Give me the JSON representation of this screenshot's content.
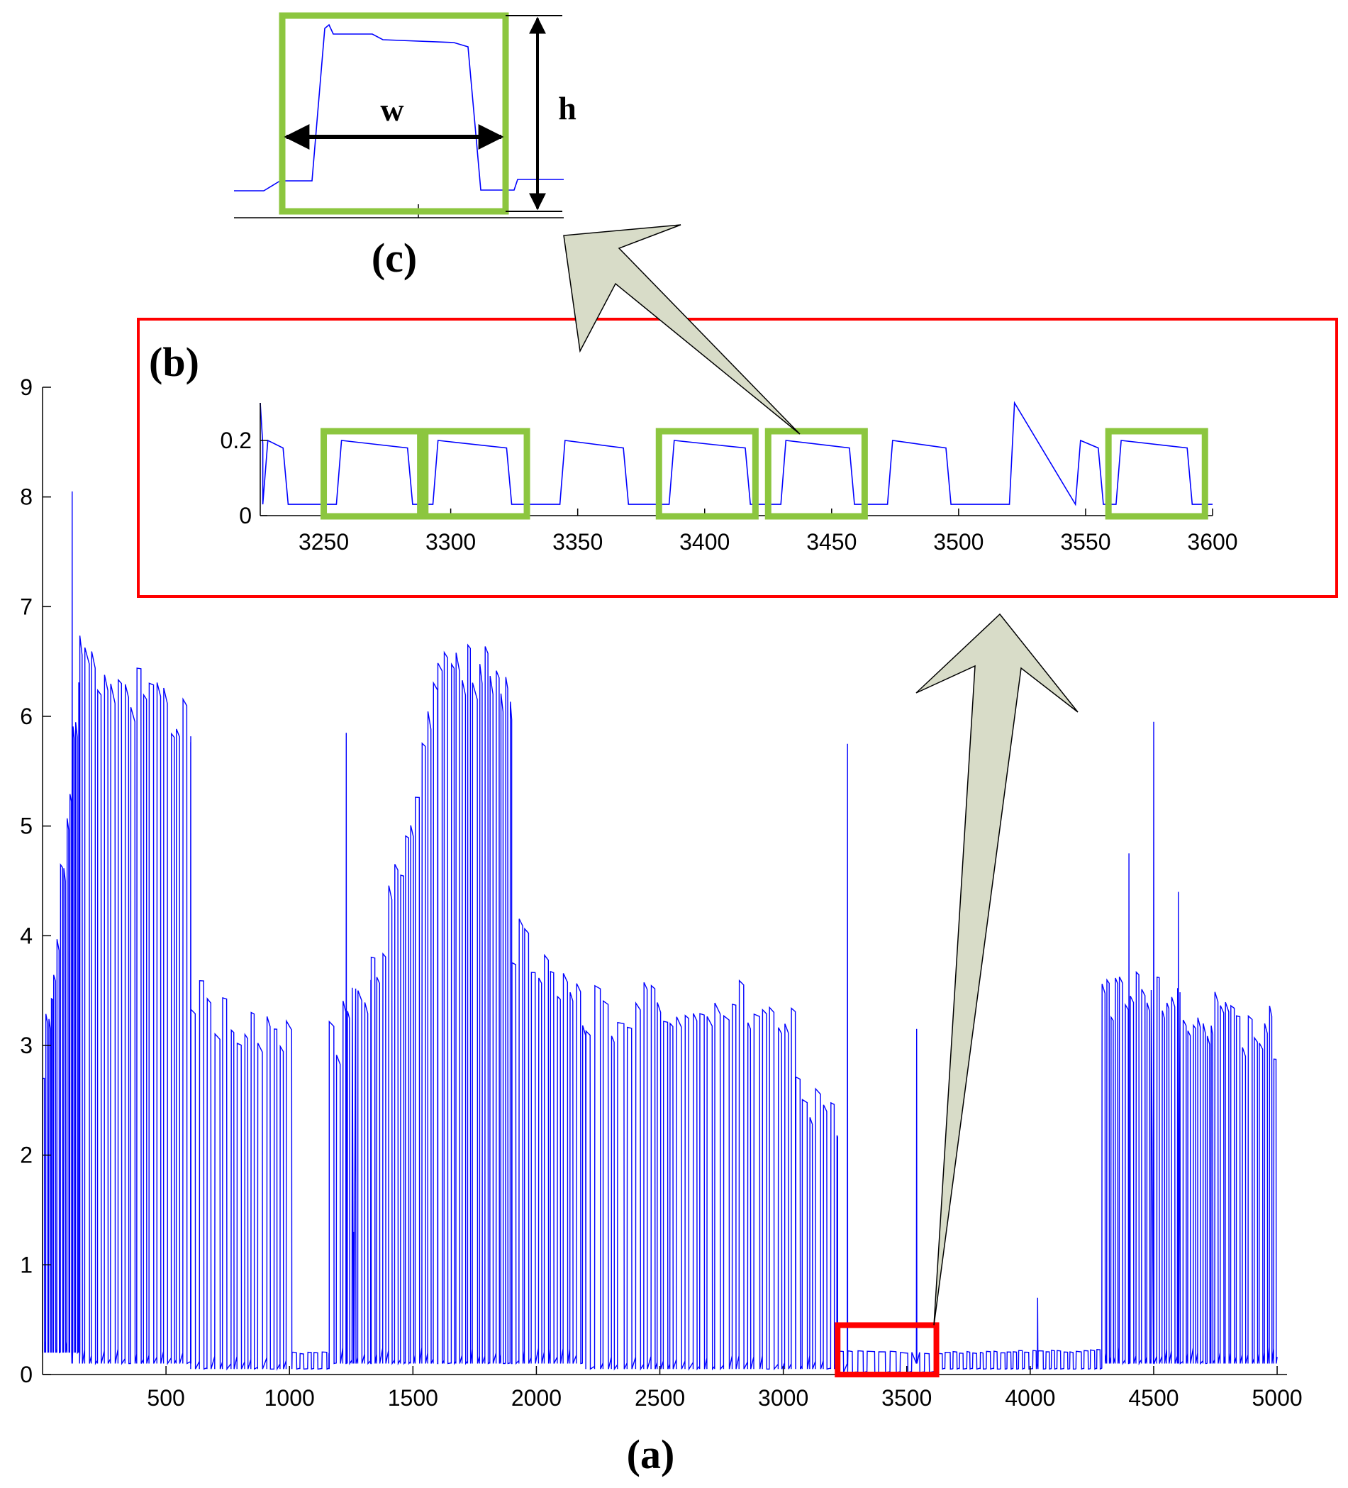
{
  "labels": {
    "panel_a": "(a)",
    "panel_b": "(b)",
    "panel_c": "(c)",
    "width": "w",
    "height": "h"
  },
  "colors": {
    "signal": "#0000ff",
    "highlight_red": "#ff0000",
    "window_green": "#8cc63f",
    "callout_arrow": "#d8dcc8",
    "axis": "#000000"
  },
  "chart_data": [
    {
      "id": "a",
      "type": "line",
      "xlim": [
        0,
        5040
      ],
      "ylim": [
        0,
        9
      ],
      "xticks": [
        500,
        1000,
        1500,
        2000,
        2500,
        3000,
        3500,
        4000,
        4500,
        5000
      ],
      "yticks": [
        0,
        1,
        2,
        3,
        4,
        5,
        6,
        7,
        8,
        9
      ],
      "highlight": {
        "x": [
          3220,
          3620
        ],
        "y": [
          0,
          0.45
        ],
        "color": "red"
      },
      "segments": [
        {
          "x": [
            0,
            150
          ],
          "hi": [
            2.8,
            6.4
          ],
          "lo": 0.2,
          "period": 12
        },
        {
          "x": [
            150,
            600
          ],
          "hi": [
            6.6,
            5.9
          ],
          "lo": 0.1,
          "period": 26
        },
        {
          "x": [
            600,
            1010
          ],
          "hi": [
            3.4,
            3.1
          ],
          "lo": 0.05,
          "period": 30
        },
        {
          "x": [
            1010,
            1160
          ],
          "hi": [
            0.2,
            0.2
          ],
          "lo": 0.05,
          "period": 28
        },
        {
          "x": [
            1160,
            1330
          ],
          "hi": [
            3.0,
            3.7
          ],
          "lo": 0.1,
          "period": 24
        },
        {
          "x": [
            1330,
            1600
          ],
          "hi": [
            3.6,
            6.3
          ],
          "lo": 0.1,
          "period": 22
        },
        {
          "x": [
            1600,
            1900
          ],
          "hi": [
            6.6,
            6.3
          ],
          "lo": 0.1,
          "period": 24
        },
        {
          "x": [
            1900,
            2200
          ],
          "hi": [
            4.0,
            3.4
          ],
          "lo": 0.1,
          "period": 26
        },
        {
          "x": [
            2200,
            3050
          ],
          "hi": [
            3.3,
            3.4
          ],
          "lo": 0.05,
          "period": 32
        },
        {
          "x": [
            3050,
            3220
          ],
          "hi": [
            2.6,
            2.3
          ],
          "lo": 0.05,
          "period": 30
        },
        {
          "x": [
            3220,
            3620
          ],
          "hi": [
            0.22,
            0.2
          ],
          "lo": 0.02,
          "period": 44
        },
        {
          "x": [
            3620,
            4290
          ],
          "hi": [
            0.2,
            0.22
          ],
          "lo": 0.05,
          "period": 28
        },
        {
          "x": [
            4290,
            5000
          ],
          "hi": [
            3.5,
            3.1
          ],
          "lo": 0.1,
          "period": 20
        }
      ],
      "spikes": [
        {
          "x": 120,
          "y": 8.05
        },
        {
          "x": 1230,
          "y": 5.85
        },
        {
          "x": 1260,
          "y": 1.3
        },
        {
          "x": 3260,
          "y": 5.75
        },
        {
          "x": 3540,
          "y": 3.15
        },
        {
          "x": 4030,
          "y": 0.7
        },
        {
          "x": 4400,
          "y": 4.75
        },
        {
          "x": 4500,
          "y": 5.95
        },
        {
          "x": 4600,
          "y": 4.4
        }
      ]
    },
    {
      "id": "b",
      "type": "line",
      "xlim": [
        3225,
        3600
      ],
      "ylim": [
        0,
        0.3
      ],
      "xticks": [
        3250,
        3300,
        3350,
        3400,
        3450,
        3500,
        3550,
        3600
      ],
      "yticks": [
        0,
        0.2
      ],
      "pulses": [
        {
          "x": [
            3228,
            3234
          ],
          "y": 0.19
        },
        {
          "x": [
            3257,
            3283
          ],
          "y": 0.19
        },
        {
          "x": [
            3295,
            3322
          ],
          "y": 0.19
        },
        {
          "x": [
            3345,
            3368
          ],
          "y": 0.19
        },
        {
          "x": [
            3388,
            3416
          ],
          "y": 0.19
        },
        {
          "x": [
            3432,
            3457
          ],
          "y": 0.19
        },
        {
          "x": [
            3474,
            3495
          ],
          "y": 0.19
        },
        {
          "x": [
            3548,
            3555
          ],
          "y": 0.19
        },
        {
          "x": [
            3564,
            3590
          ],
          "y": 0.19
        }
      ],
      "windows": [
        {
          "x": [
            3250,
            3288
          ]
        },
        {
          "x": [
            3290,
            3330
          ]
        },
        {
          "x": [
            3382,
            3420
          ]
        },
        {
          "x": [
            3425,
            3463
          ]
        },
        {
          "x": [
            3559,
            3597
          ]
        }
      ]
    },
    {
      "id": "c",
      "type": "line",
      "annotation": "single pulse window with width w and height h"
    }
  ]
}
